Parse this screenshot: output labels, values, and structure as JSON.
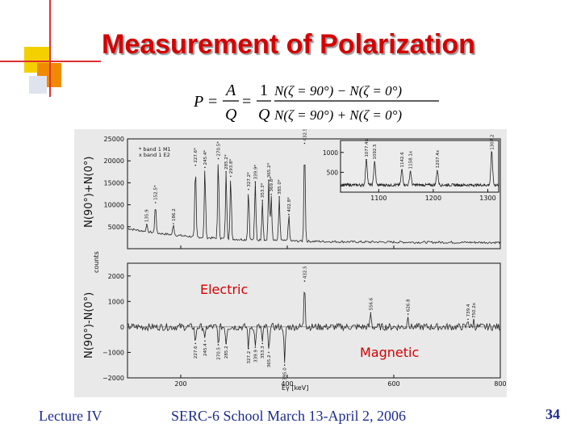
{
  "slide": {
    "title": "Measurement of Polarization",
    "footer_left": "Lecture IV",
    "footer_center": "SERC-6 School March 13-April 2, 2006",
    "page_number": "34",
    "accent_colors": {
      "title": "#d40000",
      "square_yellow": "#f4d000",
      "square_orange": "#f08a00",
      "lines": "#e03030",
      "footer": "#1d2c8c"
    }
  },
  "formula": {
    "lhs": "P",
    "frac1_num": "A",
    "frac1_den": "Q",
    "frac2_num": "1",
    "frac2_den": "Q",
    "frac3_num": "N(ζ = 90°) − N(ζ = 0°)",
    "frac3_den": "N(ζ = 90°) + N(ζ = 0°)"
  },
  "figure": {
    "ylabel_top": "N(90°)+N(0°)",
    "ylabel_bottom": "N(90°)-N(0°)",
    "ylabel_counts": "counts",
    "xlabel": "Eγ [keV]",
    "legend_line1": "* band 1 M1",
    "legend_line2": "x band 1 E2",
    "label_electric": "Electric",
    "label_magnetic": "Magnetic",
    "label_electric_color": "#d40000",
    "label_magnetic_color": "#d40000"
  },
  "chart_data": [
    {
      "type": "line",
      "title": "",
      "xlabel": "Eγ [keV]",
      "ylabel": "N(90°)+N(0°)",
      "xlim": [
        100,
        800
      ],
      "ylim": [
        0,
        25000
      ],
      "x_ticks": [
        200,
        400,
        600,
        800
      ],
      "y_ticks": [
        5000,
        10000,
        15000,
        20000,
        25000
      ],
      "y_tick_labels": [
        "5000",
        "10000",
        "15000",
        "20000",
        "25000"
      ],
      "peaks": [
        {
          "energy": 135.9,
          "label": "135.9",
          "counts": 5500
        },
        {
          "energy": 152.5,
          "label": "152.5*",
          "counts": 10500
        },
        {
          "energy": 186.2,
          "label": "186.2",
          "counts": 5700
        },
        {
          "energy": 227.6,
          "label": "227.6*",
          "counts": 19000
        },
        {
          "energy": 245.4,
          "label": "245.4*",
          "counts": 18500
        },
        {
          "energy": 270.5,
          "label": "270.5*",
          "counts": 20500
        },
        {
          "energy": 285.2,
          "label": "285.2*",
          "counts": 17500
        },
        {
          "energy": 293.8,
          "label": "293.8*",
          "counts": 16500
        },
        {
          "energy": 327.2,
          "label": "327.2*",
          "counts": 13500
        },
        {
          "energy": 339.9,
          "label": "339.9*",
          "counts": 15200
        },
        {
          "energy": 353.3,
          "label": "353.3*",
          "counts": 11000
        },
        {
          "energy": 365.2,
          "label": "365.2*",
          "counts": 15600
        },
        {
          "energy": 369.8,
          "label": "369.8*",
          "counts": 12400
        },
        {
          "energy": 385.0,
          "label": "385.0*",
          "counts": 11800
        },
        {
          "energy": 402.8,
          "label": "402.8*",
          "counts": 7800
        },
        {
          "energy": 432.5,
          "label": "432.5",
          "counts": 24000
        }
      ]
    },
    {
      "type": "line",
      "title": "",
      "xlabel": "Eγ [keV]",
      "ylabel": "N(90°)-N(0°)",
      "xlim": [
        100,
        800
      ],
      "ylim": [
        -2000,
        2500
      ],
      "x_ticks": [
        200,
        400,
        600,
        800
      ],
      "y_ticks": [
        -2000,
        -1000,
        0,
        1000,
        2000
      ],
      "y_tick_labels": [
        "−2000",
        "−1000",
        "0",
        "1000",
        "2000"
      ],
      "peaks": [
        {
          "energy": 432.5,
          "label": "432.5",
          "counts": 1800
        },
        {
          "energy": 556.6,
          "label": "556.6",
          "counts": 550
        },
        {
          "energy": 626.8,
          "label": "626.8",
          "counts": 500
        },
        {
          "energy": 739.4,
          "label": "739.4",
          "counts": 300
        },
        {
          "energy": 750.2,
          "label": "750.2x",
          "counts": 250
        },
        {
          "energy": 227.6,
          "label": "227.6",
          "counts": -650
        },
        {
          "energy": 245.4,
          "label": "245.4",
          "counts": -550
        },
        {
          "energy": 270.5,
          "label": "270.5",
          "counts": -700
        },
        {
          "energy": 285.2,
          "label": "285.2",
          "counts": -650
        },
        {
          "energy": 327.2,
          "label": "327.2",
          "counts": -850
        },
        {
          "energy": 339.9,
          "label": "339.9",
          "counts": -800
        },
        {
          "energy": 353.3,
          "label": "353.3",
          "counts": -650
        },
        {
          "energy": 365.2,
          "label": "365.2",
          "counts": -1000
        },
        {
          "energy": 395.0,
          "label": "395.0",
          "counts": -1500
        }
      ]
    },
    {
      "type": "line",
      "title": "",
      "xlabel": "",
      "ylabel": "",
      "xlim": [
        1030,
        1320
      ],
      "ylim": [
        0,
        1300
      ],
      "x_ticks": [
        1100,
        1200,
        1300
      ],
      "y_ticks": [
        500,
        1000
      ],
      "y_tick_labels": [
        "500",
        "1000"
      ],
      "peaks": [
        {
          "energy": 1077.4,
          "label": "1077.4x",
          "counts": 820
        },
        {
          "energy": 1092.5,
          "label": "1092.5",
          "counts": 760
        },
        {
          "energy": 1142.6,
          "label": "1142.6",
          "counts": 560
        },
        {
          "energy": 1158.1,
          "label": "1158.1x",
          "counts": 520
        },
        {
          "energy": 1207.4,
          "label": "1207.4x",
          "counts": 540
        },
        {
          "energy": 1307.2,
          "label": "1307.2",
          "counts": 1000
        }
      ]
    }
  ]
}
